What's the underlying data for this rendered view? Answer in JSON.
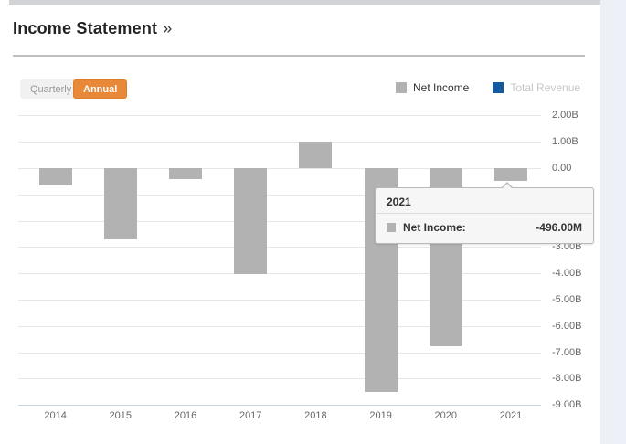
{
  "header": {
    "title": "Income Statement",
    "arrow": "»"
  },
  "toolbar": {
    "quarterly_label": "Quarterly",
    "annual_label": "Annual",
    "active_button": "Annual",
    "active_color": "#e8893a"
  },
  "legend": {
    "items": [
      {
        "label": "Net Income",
        "color": "#b2b2b2",
        "active": true
      },
      {
        "label": "Total Revenue",
        "color": "#15599e",
        "active": false
      }
    ]
  },
  "tooltip": {
    "title": "2021",
    "series_label": "Net Income:",
    "value": "-496.00M",
    "swatch_color": "#b2b2b2"
  },
  "chart_data": {
    "type": "bar",
    "title": "Income Statement",
    "categories": [
      "2014",
      "2015",
      "2016",
      "2017",
      "2018",
      "2019",
      "2020",
      "2021"
    ],
    "series": [
      {
        "name": "Net Income",
        "color": "#b2b2b2",
        "values_billions": [
          -0.67,
          -2.7,
          -0.4,
          -4.03,
          1.0,
          -8.51,
          -6.77,
          -0.496
        ]
      },
      {
        "name": "Total Revenue",
        "color": "#15599e",
        "visible": false
      }
    ],
    "yticks": [
      {
        "value": 2,
        "label": "2.00B"
      },
      {
        "value": 1,
        "label": "1.00B"
      },
      {
        "value": 0,
        "label": "0.00"
      },
      {
        "value": -1,
        "label": "-1.00B"
      },
      {
        "value": -2,
        "label": "-2.00B"
      },
      {
        "value": -3,
        "label": "-3.00B"
      },
      {
        "value": -4,
        "label": "-4.00B"
      },
      {
        "value": -5,
        "label": "-5.00B"
      },
      {
        "value": -6,
        "label": "-6.00B"
      },
      {
        "value": -7,
        "label": "-7.00B"
      },
      {
        "value": -8,
        "label": "-8.00B"
      },
      {
        "value": -9,
        "label": "-9.00B"
      }
    ],
    "ylim": [
      -9.0,
      2.4
    ],
    "grid": true,
    "legend_position": "top-right",
    "highlighted_point": {
      "category": "2021",
      "series": "Net Income",
      "value": "-496.00M"
    }
  }
}
